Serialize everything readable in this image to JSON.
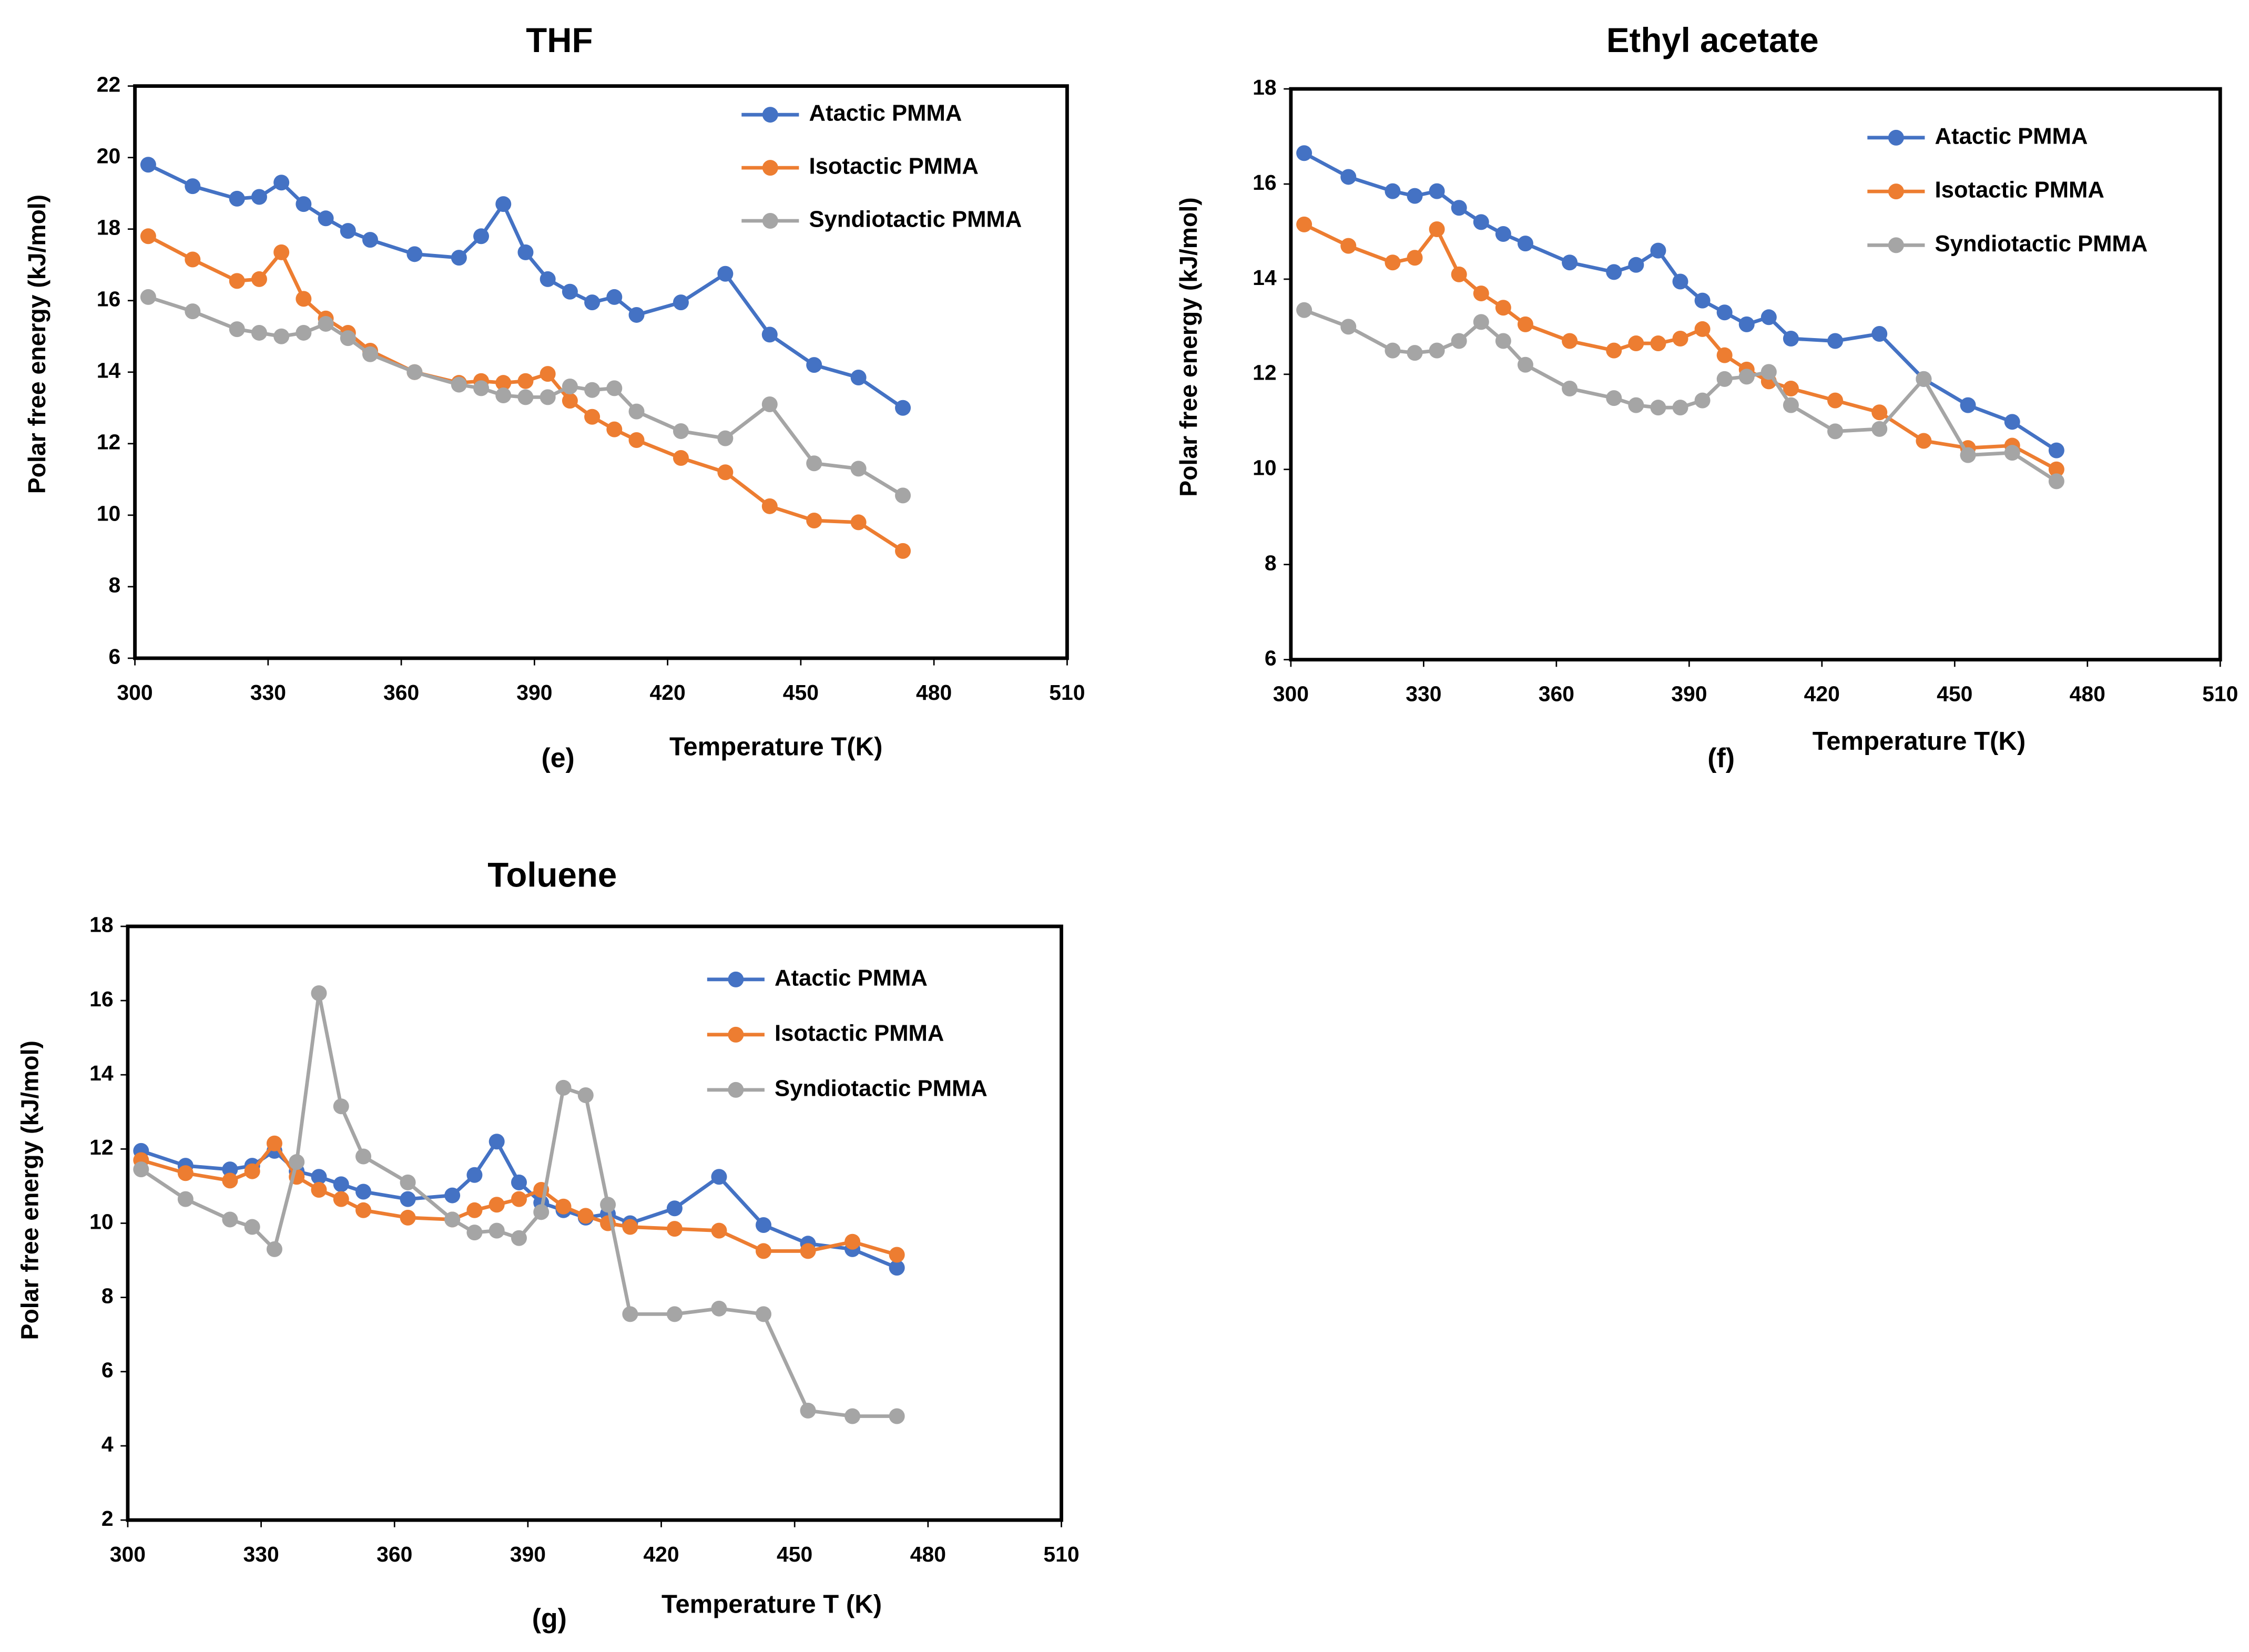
{
  "chart_data": [
    {
      "type": "line",
      "title": "THF",
      "x_label": "Temperature T(K)",
      "y_label": "Polar free energy (kJ/mol)",
      "annotation": "(e)",
      "x": [
        303,
        313,
        323,
        328,
        333,
        338,
        343,
        348,
        353,
        363,
        373,
        378,
        383,
        388,
        393,
        398,
        403,
        408,
        413,
        423,
        433,
        443,
        453,
        463,
        473
      ],
      "series": [
        {
          "name": "Atactic PMMA",
          "color": "#4472c4",
          "values": [
            19.8,
            19.2,
            18.85,
            18.9,
            19.3,
            18.7,
            18.3,
            17.95,
            17.7,
            17.3,
            17.2,
            17.8,
            18.7,
            17.35,
            16.6,
            16.25,
            15.95,
            16.1,
            15.6,
            15.95,
            16.75,
            15.05,
            14.2,
            13.85,
            13.0
          ]
        },
        {
          "name": "Isotactic PMMA",
          "color": "#ed7d31",
          "values": [
            17.8,
            17.15,
            16.55,
            16.6,
            17.35,
            16.05,
            15.5,
            15.1,
            14.6,
            14.0,
            13.7,
            13.75,
            13.7,
            13.75,
            13.95,
            13.2,
            12.75,
            12.4,
            12.1,
            11.6,
            11.2,
            10.25,
            9.85,
            9.8,
            9.0
          ]
        },
        {
          "name": "Syndiotactic PMMA",
          "color": "#a5a5a5",
          "values": [
            16.1,
            15.7,
            15.2,
            15.1,
            15.0,
            15.1,
            15.35,
            14.95,
            14.5,
            14.0,
            13.65,
            13.55,
            13.35,
            13.3,
            13.3,
            13.6,
            13.5,
            13.55,
            12.9,
            12.35,
            12.15,
            13.1,
            11.45,
            11.3,
            10.55
          ]
        }
      ],
      "xlim": [
        300,
        510
      ],
      "xticks": [
        300,
        330,
        360,
        390,
        420,
        450,
        480,
        510
      ],
      "ylim": [
        6,
        22
      ],
      "yticks": [
        6,
        8,
        10,
        12,
        14,
        16,
        18,
        20,
        22
      ],
      "legend": "top-right",
      "grid": false
    },
    {
      "type": "line",
      "title": "Ethyl acetate",
      "x_label": "Temperature T(K)",
      "y_label": "Polar free energy (kJ/mol)",
      "annotation": "(f)",
      "x": [
        303,
        313,
        323,
        328,
        333,
        338,
        343,
        348,
        353,
        363,
        373,
        378,
        383,
        388,
        393,
        398,
        403,
        408,
        413,
        423,
        433,
        443,
        453,
        463,
        473
      ],
      "series": [
        {
          "name": "Atactic PMMA",
          "color": "#4472c4",
          "values": [
            16.65,
            16.15,
            15.85,
            15.75,
            15.85,
            15.5,
            15.2,
            14.95,
            14.75,
            14.35,
            14.15,
            14.3,
            14.6,
            13.95,
            13.55,
            13.3,
            13.05,
            13.2,
            12.75,
            12.7,
            12.85,
            11.9,
            11.35,
            11.0,
            10.4
          ]
        },
        {
          "name": "Isotactic PMMA",
          "color": "#ed7d31",
          "values": [
            15.15,
            14.7,
            14.35,
            14.45,
            15.05,
            14.1,
            13.7,
            13.4,
            13.05,
            12.7,
            12.5,
            12.65,
            12.65,
            12.75,
            12.95,
            12.4,
            12.1,
            11.85,
            11.7,
            11.45,
            11.2,
            10.6,
            10.45,
            10.5,
            10.0
          ]
        },
        {
          "name": "Syndiotactic PMMA",
          "color": "#a5a5a5",
          "values": [
            13.35,
            13.0,
            12.5,
            12.45,
            12.5,
            12.7,
            13.1,
            12.7,
            12.2,
            11.7,
            11.5,
            11.35,
            11.3,
            11.3,
            11.45,
            11.9,
            11.95,
            12.05,
            11.35,
            10.8,
            10.85,
            11.9,
            10.3,
            10.35,
            9.75
          ]
        }
      ],
      "xlim": [
        300,
        510
      ],
      "xticks": [
        300,
        330,
        360,
        390,
        420,
        450,
        480,
        510
      ],
      "ylim": [
        6,
        18
      ],
      "yticks": [
        6,
        8,
        10,
        12,
        14,
        16,
        18
      ],
      "legend": "top-right",
      "grid": false
    },
    {
      "type": "line",
      "title": "Toluene",
      "x_label": "Temperature  T (K)",
      "y_label": "Polar free energy (kJ/mol)",
      "annotation": "(g)",
      "x": [
        303,
        313,
        323,
        328,
        333,
        338,
        343,
        348,
        353,
        363,
        373,
        378,
        383,
        388,
        393,
        398,
        403,
        408,
        413,
        423,
        433,
        443,
        453,
        463,
        473
      ],
      "series": [
        {
          "name": "Atactic PMMA",
          "color": "#4472c4",
          "values": [
            11.95,
            11.55,
            11.45,
            11.55,
            11.95,
            11.4,
            11.25,
            11.05,
            10.85,
            10.65,
            10.75,
            11.3,
            12.2,
            11.1,
            10.55,
            10.35,
            10.15,
            10.25,
            10.0,
            10.4,
            11.25,
            9.95,
            9.45,
            9.3,
            8.8
          ]
        },
        {
          "name": "Isotactic PMMA",
          "color": "#ed7d31",
          "values": [
            11.7,
            11.35,
            11.15,
            11.4,
            12.15,
            11.25,
            10.9,
            10.65,
            10.35,
            10.15,
            10.1,
            10.35,
            10.5,
            10.65,
            10.9,
            10.45,
            10.2,
            10.0,
            9.9,
            9.85,
            9.8,
            9.25,
            9.25,
            9.5,
            9.15
          ]
        },
        {
          "name": "Syndiotactic PMMA",
          "color": "#a5a5a5",
          "values": [
            11.45,
            10.65,
            10.1,
            9.9,
            9.3,
            11.65,
            16.2,
            13.15,
            11.8,
            11.1,
            10.1,
            9.75,
            9.8,
            9.6,
            10.3,
            13.65,
            13.45,
            10.5,
            7.55,
            7.55,
            7.7,
            7.55,
            4.95,
            4.8,
            4.8
          ]
        }
      ],
      "xlim": [
        300,
        510
      ],
      "xticks": [
        300,
        330,
        360,
        390,
        420,
        450,
        480,
        510
      ],
      "ylim": [
        2,
        18
      ],
      "yticks": [
        2,
        4,
        6,
        8,
        10,
        12,
        14,
        16,
        18
      ],
      "legend": "top-right",
      "grid": false
    }
  ]
}
